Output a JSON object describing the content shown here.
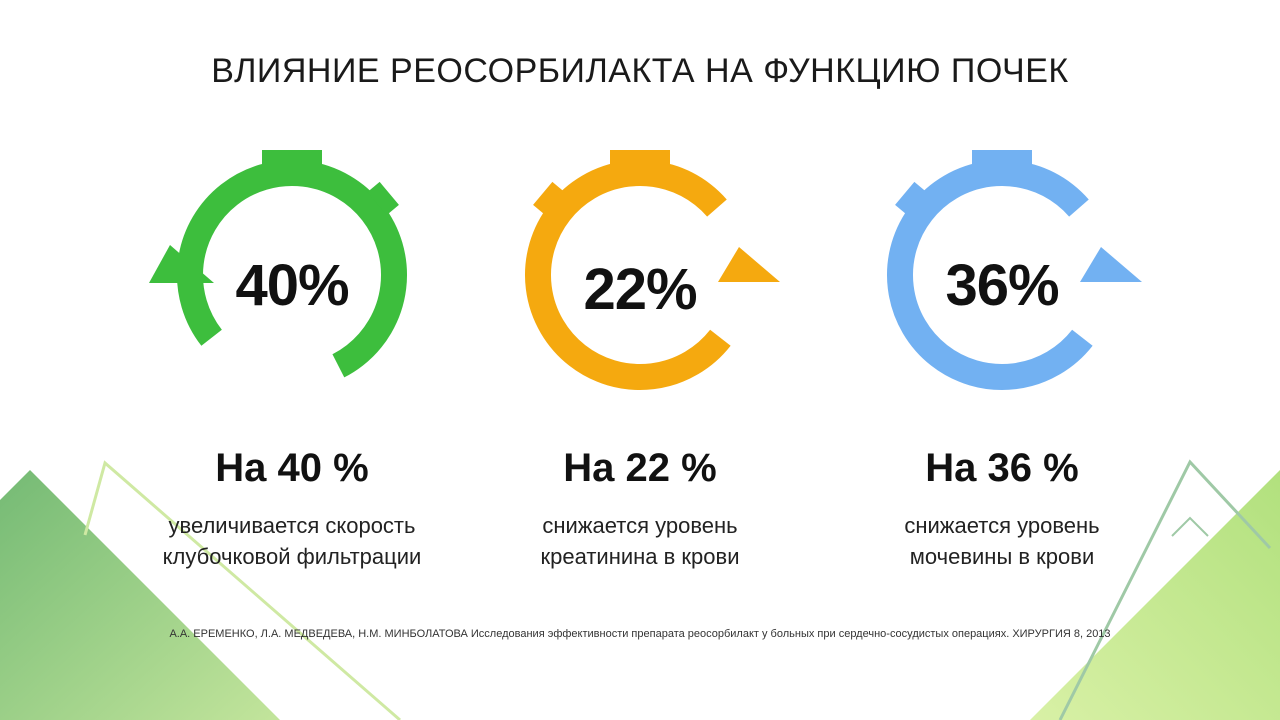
{
  "title": "ВЛИЯНИЕ РЕОСОРБИЛАКТА НА ФУНКЦИЮ ПОЧЕК",
  "stats": [
    {
      "percent": "40%",
      "headline": "На 40 %",
      "desc_line1": "увеличивается скорость",
      "desc_line2": "клубочковой фильтрации",
      "color": "#3DBE3D",
      "value": 40
    },
    {
      "percent": "22%",
      "headline": "На 22 %",
      "desc_line1": "снижается уровень",
      "desc_line2": "креатинина в крови",
      "color": "#F5A90F",
      "value": 22
    },
    {
      "percent": "36%",
      "headline": "На 36 %",
      "desc_line1": "снижается уровень",
      "desc_line2": "мочевины в крови",
      "color": "#72B1F2",
      "value": 36
    }
  ],
  "source": "А.А. ЕРЕМЕНКО, Л.А. МЕДВЕДЕВА, Н.М. МИНБОЛАТОВА Исследования эффективности препарата реосорбилакт у больных при сердечно-сосудистых операциях. ХИРУРГИЯ 8, 2013"
}
